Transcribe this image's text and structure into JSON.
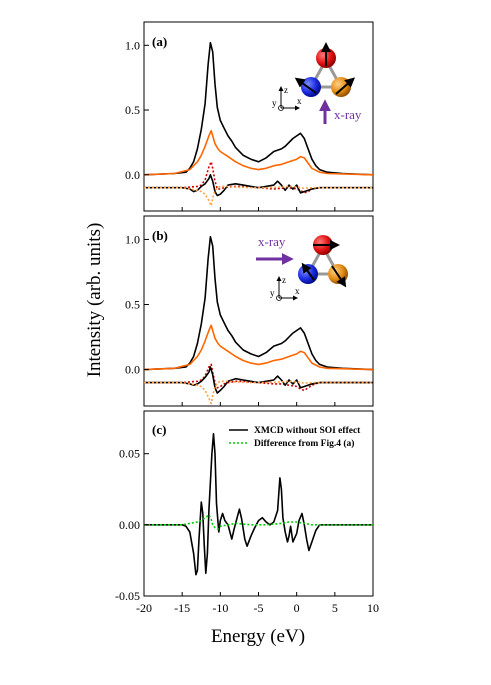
{
  "figure": {
    "ylabel": "Intensity (arb. units)",
    "xlabel": "Energy (eV)",
    "xticks": [
      "-20",
      "-15",
      "-10",
      "-5",
      "0",
      "5",
      "10"
    ]
  },
  "panels": {
    "a": {
      "label": "(a)",
      "yticks": [
        "1.0",
        "0.5",
        "0.0"
      ],
      "xray": "x-ray",
      "axes": {
        "z": "z",
        "y": "y",
        "x": "x"
      }
    },
    "b": {
      "label": "(b)",
      "yticks": [
        "1.0",
        "0.5",
        "0.0"
      ],
      "xray": "x-ray",
      "axes": {
        "z": "z",
        "y": "y",
        "x": "x"
      }
    },
    "c": {
      "label": "(c)",
      "yticks": [
        "0.05",
        "0.00",
        "-0.05"
      ],
      "legend": [
        "XMCD without SOI effect",
        "Difference from Fig.4 (a)"
      ]
    }
  },
  "chart_data": [
    {
      "type": "line",
      "panel": "a",
      "xlim": [
        -20,
        10
      ],
      "ylim": [
        -0.28,
        1.18
      ],
      "grid": false,
      "series": [
        {
          "color": "#000000",
          "style": "solid",
          "x": [
            -20,
            -16,
            -14.5,
            -14,
            -13.5,
            -13,
            -12.5,
            -12,
            -11.6,
            -11.3,
            -11,
            -10.7,
            -10.4,
            -10,
            -9.5,
            -9,
            -8.5,
            -8,
            -7,
            -6,
            -5,
            -4,
            -3,
            -2,
            -1.5,
            -1,
            -0.5,
            0,
            0.5,
            1,
            1.5,
            2,
            2.5,
            3,
            4,
            6,
            10
          ],
          "y": [
            0,
            0.01,
            0.02,
            0.05,
            0.1,
            0.2,
            0.35,
            0.55,
            0.85,
            1.02,
            0.95,
            0.7,
            0.52,
            0.42,
            0.36,
            0.3,
            0.26,
            0.21,
            0.15,
            0.12,
            0.1,
            0.13,
            0.18,
            0.2,
            0.22,
            0.25,
            0.28,
            0.3,
            0.32,
            0.28,
            0.2,
            0.12,
            0.07,
            0.04,
            0.02,
            0.01,
            0
          ]
        },
        {
          "color": "#ff6600",
          "style": "solid",
          "x": [
            -20,
            -16,
            -14,
            -13,
            -12.5,
            -12,
            -11.5,
            -11.2,
            -11,
            -10.7,
            -10.3,
            -10,
            -9.5,
            -9,
            -8,
            -7,
            -6,
            -5,
            -4,
            -3,
            -2,
            -1,
            0,
            0.5,
            1,
            1.5,
            2,
            3,
            4,
            10
          ],
          "y": [
            0,
            0.01,
            0.04,
            0.1,
            0.15,
            0.22,
            0.3,
            0.34,
            0.3,
            0.24,
            0.2,
            0.18,
            0.16,
            0.14,
            0.1,
            0.07,
            0.05,
            0.04,
            0.05,
            0.07,
            0.08,
            0.1,
            0.12,
            0.14,
            0.13,
            0.09,
            0.05,
            0.02,
            0.01,
            0
          ]
        },
        {
          "color": "#cc0000",
          "style": "dotted",
          "offset": -0.1,
          "x": [
            -20,
            -15,
            -14,
            -13,
            -12.5,
            -12,
            -11.5,
            -11.2,
            -11,
            -10.7,
            -10.4,
            -10,
            -9.5,
            -9,
            -8,
            -7,
            -5,
            -3,
            -2,
            -1,
            0,
            0.5,
            1,
            1.5,
            2,
            3,
            5,
            10
          ],
          "y": [
            0,
            0,
            0.005,
            0.01,
            0.02,
            0.06,
            0.16,
            0.2,
            0.15,
            0.05,
            -0.01,
            -0.01,
            0,
            0.005,
            0.01,
            0.01,
            0,
            -0.01,
            -0.005,
            0,
            -0.01,
            -0.02,
            -0.04,
            -0.03,
            -0.01,
            0,
            0,
            0
          ]
        },
        {
          "color": "#000000",
          "style": "solid",
          "offset": -0.1,
          "x": [
            -20,
            -15,
            -14,
            -13.5,
            -13,
            -12.5,
            -12,
            -11.5,
            -11.3,
            -11,
            -10.7,
            -10.4,
            -10,
            -9.5,
            -9,
            -8,
            -7,
            -6,
            -5,
            -4,
            -3,
            -2.5,
            -2,
            -1.5,
            -1,
            -0.5,
            0,
            0.5,
            1,
            2,
            3,
            5,
            10
          ],
          "y": [
            0,
            0,
            -0.01,
            -0.03,
            -0.02,
            0.01,
            0.03,
            0.07,
            0.1,
            0.05,
            -0.03,
            -0.06,
            -0.05,
            -0.02,
            0.02,
            0.03,
            0.02,
            0.01,
            0,
            0.01,
            0.02,
            0.05,
            0.02,
            -0.02,
            0.02,
            -0.01,
            0.02,
            -0.04,
            -0.03,
            -0.01,
            0,
            0,
            0
          ]
        },
        {
          "color": "#ffa040",
          "style": "dotted",
          "offset": -0.1,
          "x": [
            -20,
            -15,
            -14,
            -13,
            -12.5,
            -12,
            -11.5,
            -11.2,
            -11,
            -10.7,
            -10.3,
            -10,
            -9,
            -8,
            -6,
            -4,
            -2,
            -1,
            0,
            1,
            2,
            4,
            10
          ],
          "y": [
            0,
            0,
            -0.01,
            -0.02,
            -0.03,
            -0.05,
            -0.1,
            -0.14,
            -0.08,
            -0.02,
            0,
            0.01,
            0.01,
            0.005,
            0,
            0,
            0.005,
            0.01,
            0.005,
            -0.005,
            0,
            0,
            0
          ]
        }
      ]
    },
    {
      "type": "line",
      "panel": "b",
      "xlim": [
        -20,
        10
      ],
      "ylim": [
        -0.28,
        1.18
      ],
      "grid": false,
      "series": [
        {
          "color": "#000000",
          "style": "solid",
          "x": [
            -20,
            -16,
            -14.5,
            -14,
            -13.5,
            -13,
            -12.5,
            -12,
            -11.6,
            -11.3,
            -11,
            -10.7,
            -10.4,
            -10,
            -9.5,
            -9,
            -8.5,
            -8,
            -7,
            -6,
            -5,
            -4,
            -3,
            -2,
            -1.5,
            -1,
            -0.5,
            0,
            0.5,
            1,
            1.5,
            2,
            2.5,
            3,
            4,
            6,
            10
          ],
          "y": [
            0,
            0.01,
            0.02,
            0.05,
            0.1,
            0.2,
            0.35,
            0.55,
            0.85,
            1.02,
            0.95,
            0.7,
            0.52,
            0.42,
            0.36,
            0.3,
            0.26,
            0.21,
            0.15,
            0.12,
            0.1,
            0.13,
            0.18,
            0.2,
            0.22,
            0.25,
            0.28,
            0.3,
            0.32,
            0.28,
            0.2,
            0.12,
            0.07,
            0.04,
            0.02,
            0.01,
            0
          ]
        },
        {
          "color": "#ff6600",
          "style": "solid",
          "x": [
            -20,
            -16,
            -14,
            -13,
            -12.5,
            -12,
            -11.5,
            -11.2,
            -11,
            -10.7,
            -10.3,
            -10,
            -9.5,
            -9,
            -8,
            -7,
            -6,
            -5,
            -4,
            -3,
            -2,
            -1,
            0,
            0.5,
            1,
            1.5,
            2,
            3,
            4,
            10
          ],
          "y": [
            0,
            0.01,
            0.04,
            0.1,
            0.15,
            0.22,
            0.3,
            0.34,
            0.3,
            0.24,
            0.2,
            0.18,
            0.16,
            0.14,
            0.1,
            0.07,
            0.05,
            0.04,
            0.05,
            0.07,
            0.08,
            0.1,
            0.12,
            0.14,
            0.13,
            0.09,
            0.05,
            0.02,
            0.01,
            0
          ]
        },
        {
          "color": "#cc0000",
          "style": "dotted",
          "offset": -0.1,
          "x": [
            -20,
            -15,
            -14,
            -13,
            -12.5,
            -12,
            -11.5,
            -11.2,
            -11,
            -10.7,
            -10.4,
            -10,
            -9.5,
            -9,
            -8,
            -7,
            -5,
            -3,
            -2,
            -1,
            0,
            0.5,
            1,
            1.5,
            2,
            3,
            5,
            10
          ],
          "y": [
            0,
            0,
            0.005,
            0.01,
            0.02,
            0.05,
            0.12,
            0.14,
            0.08,
            0,
            -0.04,
            -0.03,
            -0.01,
            0,
            0.01,
            0.01,
            0,
            -0.01,
            -0.01,
            -0.02,
            -0.03,
            -0.05,
            -0.06,
            -0.04,
            -0.02,
            0,
            0,
            0
          ]
        },
        {
          "color": "#000000",
          "style": "solid",
          "offset": -0.1,
          "x": [
            -20,
            -15,
            -14,
            -13.5,
            -13,
            -12.5,
            -12,
            -11.5,
            -11.3,
            -11,
            -10.7,
            -10.4,
            -10,
            -9.5,
            -9,
            -8,
            -7,
            -6,
            -5,
            -4,
            -3,
            -2.5,
            -2,
            -1.5,
            -1,
            -0.5,
            0,
            0.5,
            1,
            2,
            3,
            5,
            10
          ],
          "y": [
            0,
            0,
            -0.01,
            -0.02,
            -0.01,
            0.01,
            0.04,
            0.08,
            0.12,
            0.06,
            -0.04,
            -0.08,
            -0.06,
            -0.03,
            0.01,
            0.03,
            0.02,
            0.01,
            0,
            0.01,
            0.02,
            0.05,
            0.02,
            -0.02,
            0.02,
            -0.01,
            0.02,
            -0.04,
            -0.03,
            -0.01,
            0,
            0,
            0
          ]
        },
        {
          "color": "#ffa040",
          "style": "dotted",
          "offset": -0.1,
          "x": [
            -20,
            -15,
            -14,
            -13,
            -12.5,
            -12,
            -11.5,
            -11.2,
            -11,
            -10.7,
            -10.3,
            -10,
            -9,
            -8,
            -6,
            -4,
            -2,
            -1,
            0,
            1,
            2,
            4,
            10
          ],
          "y": [
            0,
            0,
            -0.01,
            -0.02,
            -0.03,
            -0.06,
            -0.12,
            -0.16,
            -0.1,
            -0.03,
            0,
            0.01,
            0.01,
            0.005,
            0,
            0,
            0.005,
            0.01,
            0.005,
            -0.005,
            0,
            0,
            0
          ]
        }
      ]
    },
    {
      "type": "line",
      "panel": "c",
      "xlim": [
        -20,
        10
      ],
      "ylim": [
        -0.05,
        0.08
      ],
      "grid": false,
      "legend_position": "top-right",
      "series": [
        {
          "name": "XMCD without SOI effect",
          "color": "#000000",
          "style": "solid",
          "x": [
            -20,
            -15,
            -14.5,
            -14,
            -13.5,
            -13.2,
            -13,
            -12.8,
            -12.5,
            -12.3,
            -12.1,
            -11.9,
            -11.7,
            -11.5,
            -11.3,
            -11.1,
            -10.9,
            -10.7,
            -10.5,
            -10.2,
            -10,
            -9.7,
            -9.4,
            -9,
            -8.5,
            -8.2,
            -7.8,
            -7.5,
            -7.2,
            -6.8,
            -6.5,
            -6,
            -5.5,
            -5,
            -4.5,
            -4,
            -3.5,
            -3,
            -2.5,
            -2.2,
            -2,
            -1.8,
            -1.5,
            -1.2,
            -1,
            -0.8,
            -0.5,
            0,
            0.3,
            0.7,
            1,
            1.3,
            1.6,
            2,
            2.5,
            3,
            4,
            5,
            6,
            10
          ],
          "y": [
            0,
            0,
            -0.001,
            -0.005,
            -0.02,
            -0.035,
            -0.032,
            -0.01,
            0.016,
            0.008,
            -0.015,
            -0.034,
            -0.02,
            0.01,
            0.03,
            0.05,
            0.064,
            0.05,
            0.015,
            -0.005,
            0.003,
            0.008,
            0.003,
            0,
            -0.01,
            -0.003,
            0.005,
            0.011,
            0.004,
            -0.01,
            -0.015,
            -0.008,
            -0.002,
            0.003,
            0.005,
            0.002,
            0,
            0.002,
            0.01,
            0.033,
            0.025,
            0.005,
            -0.005,
            -0.012,
            -0.008,
            -0.001,
            -0.012,
            -0.006,
            0.003,
            0.008,
            0,
            -0.01,
            -0.018,
            -0.012,
            -0.004,
            0,
            0,
            0,
            0,
            0
          ]
        },
        {
          "name": "Difference from Fig.4 (a)",
          "color": "#00cc00",
          "style": "dotted",
          "x": [
            -20,
            -15,
            -14,
            -13,
            -12.5,
            -12,
            -11.5,
            -11.2,
            -11,
            -10.7,
            -10.3,
            -10,
            -9,
            -8,
            -6,
            -4,
            -2,
            -1,
            0,
            1,
            2,
            4,
            10
          ],
          "y": [
            0,
            0,
            0.001,
            0.002,
            0.003,
            0.005,
            0.007,
            0.004,
            0,
            -0.002,
            -0.003,
            -0.001,
            0,
            0.001,
            0,
            0,
            0.001,
            0.002,
            0.002,
            0.001,
            0,
            0,
            0
          ]
        }
      ]
    }
  ]
}
